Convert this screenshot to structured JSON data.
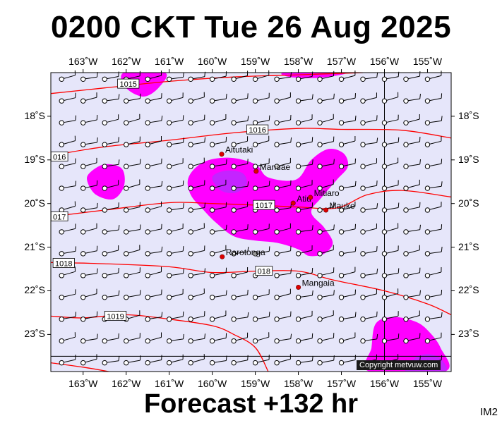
{
  "title": "0200 CKT Tue 26 Aug 2025",
  "footer": "Forecast +132 hr",
  "image_code": "IM2",
  "copyright": "Copyright metvuw.com",
  "lon_ticks": [
    {
      "label": "163˚W",
      "lon": -163
    },
    {
      "label": "162˚W",
      "lon": -162
    },
    {
      "label": "161˚W",
      "lon": -161
    },
    {
      "label": "160˚W",
      "lon": -160
    },
    {
      "label": "159˚W",
      "lon": -159
    },
    {
      "label": "158˚W",
      "lon": -158
    },
    {
      "label": "157˚W",
      "lon": -157
    },
    {
      "label": "156˚W",
      "lon": -156
    },
    {
      "label": "155˚W",
      "lon": -155
    }
  ],
  "lat_ticks": [
    {
      "label": "18˚S",
      "lat": -18
    },
    {
      "label": "19˚S",
      "lat": -19
    },
    {
      "label": "20˚S",
      "lat": -20
    },
    {
      "label": "21˚S",
      "lat": -21
    },
    {
      "label": "22˚S",
      "lat": -22
    },
    {
      "label": "23˚S",
      "lat": -23
    }
  ],
  "bounds": {
    "lon_min": -163.75,
    "lon_max": -154.45,
    "lat_max": -17.0,
    "lat_min": -23.85
  },
  "colors": {
    "background": "#e6e6fa",
    "rain_light": "#ff00ff",
    "rain_heavy": "#b030ff",
    "isobar": "#ff0000",
    "island": "#dd0000"
  },
  "islands": [
    {
      "name": "Aitutaki",
      "lon": -159.78,
      "lat": -18.87
    },
    {
      "name": "Manuae",
      "lon": -158.98,
      "lat": -19.26
    },
    {
      "name": "Atiu",
      "lon": -158.12,
      "lat": -19.99
    },
    {
      "name": "Mitiaro",
      "lon": -157.72,
      "lat": -19.86
    },
    {
      "name": "Mauke",
      "lon": -157.36,
      "lat": -20.15
    },
    {
      "name": "Rarotonga",
      "lon": -159.77,
      "lat": -21.22
    },
    {
      "name": "Mangaia",
      "lon": -158.0,
      "lat": -21.92
    }
  ],
  "isobars": [
    {
      "label": "1015",
      "label_lon": -161.95,
      "label_lat": -17.26,
      "points": [
        [
          -163.75,
          -17.48
        ],
        [
          -162.5,
          -17.35
        ],
        [
          -161.0,
          -17.2
        ],
        [
          -159.5,
          -17.1
        ],
        [
          -158.0,
          -17.05
        ],
        [
          -156.5,
          -17.0
        ]
      ]
    },
    {
      "label": "1016",
      "label_lon": -158.95,
      "label_lat": -18.31,
      "points": [
        [
          -163.75,
          -18.9
        ],
        [
          -162.5,
          -18.7
        ],
        [
          -161.0,
          -18.55
        ],
        [
          -159.5,
          -18.38
        ],
        [
          -158.0,
          -18.28
        ],
        [
          -157.0,
          -18.3
        ],
        [
          -155.6,
          -18.32
        ],
        [
          -154.45,
          -18.5
        ]
      ]
    },
    {
      "label": "016",
      "label_lon": -163.55,
      "label_lat": -18.93,
      "points": []
    },
    {
      "label": "1017",
      "label_lon": -158.8,
      "label_lat": -20.04,
      "points": [
        [
          -163.75,
          -20.3
        ],
        [
          -162.5,
          -20.15
        ],
        [
          -161.0,
          -19.98
        ],
        [
          -160.0,
          -20.0
        ],
        [
          -158.9,
          -20.04
        ],
        [
          -158.0,
          -20.08
        ],
        [
          -157.1,
          -20.1
        ],
        [
          -156.4,
          -19.8
        ],
        [
          -155.6,
          -19.7
        ],
        [
          -154.45,
          -19.85
        ]
      ]
    },
    {
      "label": "017",
      "label_lon": -163.55,
      "label_lat": -20.3,
      "points": []
    },
    {
      "label": "1018",
      "label_lon": -163.45,
      "label_lat": -21.37,
      "points": [
        [
          -163.75,
          -21.35
        ],
        [
          -162.5,
          -21.38
        ],
        [
          -161.0,
          -21.45
        ],
        [
          -160.0,
          -21.58
        ],
        [
          -159.0,
          -21.55
        ],
        [
          -158.0,
          -21.55
        ],
        [
          -157.2,
          -21.75
        ],
        [
          -156.0,
          -22.0
        ],
        [
          -155.0,
          -22.3
        ],
        [
          -154.45,
          -22.55
        ]
      ]
    },
    {
      "label": "018",
      "label_lon": -158.8,
      "label_lat": -21.55,
      "points": []
    },
    {
      "label": "1019",
      "label_lon": -162.25,
      "label_lat": -22.58,
      "points": [
        [
          -163.75,
          -22.58
        ],
        [
          -163.0,
          -22.62
        ],
        [
          -162.0,
          -22.55
        ],
        [
          -161.0,
          -22.65
        ],
        [
          -160.0,
          -22.8
        ],
        [
          -159.5,
          -23.0
        ],
        [
          -159.0,
          -23.3
        ],
        [
          -158.7,
          -23.85
        ]
      ]
    },
    {
      "label": "",
      "label_lon": 0,
      "label_lat": 0,
      "points": [
        [
          -163.75,
          -23.65
        ],
        [
          -163.0,
          -23.75
        ],
        [
          -162.4,
          -23.85
        ]
      ]
    }
  ],
  "rain_light": [
    [
      [
        -162.05,
        -17.0
      ],
      [
        -162.0,
        -17.35
      ],
      [
        -161.6,
        -17.55
      ],
      [
        -161.25,
        -17.35
      ],
      [
        -161.1,
        -17.0
      ]
    ],
    [
      [
        -158.3,
        -17.0
      ],
      [
        -158.2,
        -17.1
      ],
      [
        -157.5,
        -17.12
      ],
      [
        -156.9,
        -17.0
      ]
    ],
    [
      [
        -162.85,
        -19.3
      ],
      [
        -162.5,
        -19.1
      ],
      [
        -162.1,
        -19.2
      ],
      [
        -162.05,
        -19.6
      ],
      [
        -162.3,
        -19.9
      ],
      [
        -162.7,
        -19.8
      ],
      [
        -162.9,
        -19.5
      ]
    ],
    [
      [
        -160.55,
        -19.4
      ],
      [
        -160.2,
        -19.05
      ],
      [
        -159.6,
        -18.95
      ],
      [
        -159.0,
        -19.1
      ],
      [
        -158.7,
        -19.4
      ],
      [
        -158.05,
        -19.45
      ],
      [
        -157.7,
        -19.0
      ],
      [
        -157.3,
        -18.75
      ],
      [
        -156.95,
        -18.85
      ],
      [
        -156.85,
        -19.15
      ],
      [
        -157.1,
        -19.45
      ],
      [
        -157.45,
        -19.85
      ],
      [
        -157.7,
        -20.2
      ],
      [
        -157.4,
        -20.55
      ],
      [
        -157.2,
        -20.9
      ],
      [
        -157.4,
        -21.15
      ],
      [
        -157.75,
        -21.2
      ],
      [
        -158.0,
        -21.05
      ],
      [
        -158.5,
        -20.9
      ],
      [
        -159.0,
        -20.85
      ],
      [
        -159.5,
        -20.75
      ],
      [
        -159.9,
        -20.45
      ],
      [
        -160.2,
        -20.15
      ],
      [
        -160.5,
        -19.8
      ]
    ],
    [
      [
        -156.35,
        -23.85
      ],
      [
        -156.3,
        -23.3
      ],
      [
        -156.2,
        -22.75
      ],
      [
        -155.8,
        -22.6
      ],
      [
        -155.3,
        -22.7
      ],
      [
        -155.0,
        -22.9
      ],
      [
        -154.7,
        -23.3
      ],
      [
        -154.6,
        -23.85
      ]
    ]
  ],
  "rain_heavy": [
    [
      [
        -160.0,
        -19.4
      ],
      [
        -159.7,
        -19.25
      ],
      [
        -159.3,
        -19.3
      ],
      [
        -159.2,
        -19.55
      ],
      [
        -159.45,
        -19.75
      ],
      [
        -159.8,
        -19.7
      ]
    ],
    [
      [
        -155.5,
        -23.85
      ],
      [
        -155.3,
        -23.55
      ],
      [
        -155.0,
        -23.45
      ],
      [
        -154.7,
        -23.55
      ],
      [
        -154.6,
        -23.85
      ]
    ]
  ],
  "wind_grid": {
    "lon_start": -163.5,
    "lon_step": 0.5,
    "lon_count": 19,
    "lat_start": -17.15,
    "lat_step": -0.5,
    "lat_count": 14
  },
  "meridian_line_lon": -156.0,
  "parallel_line_lat": -23.5
}
